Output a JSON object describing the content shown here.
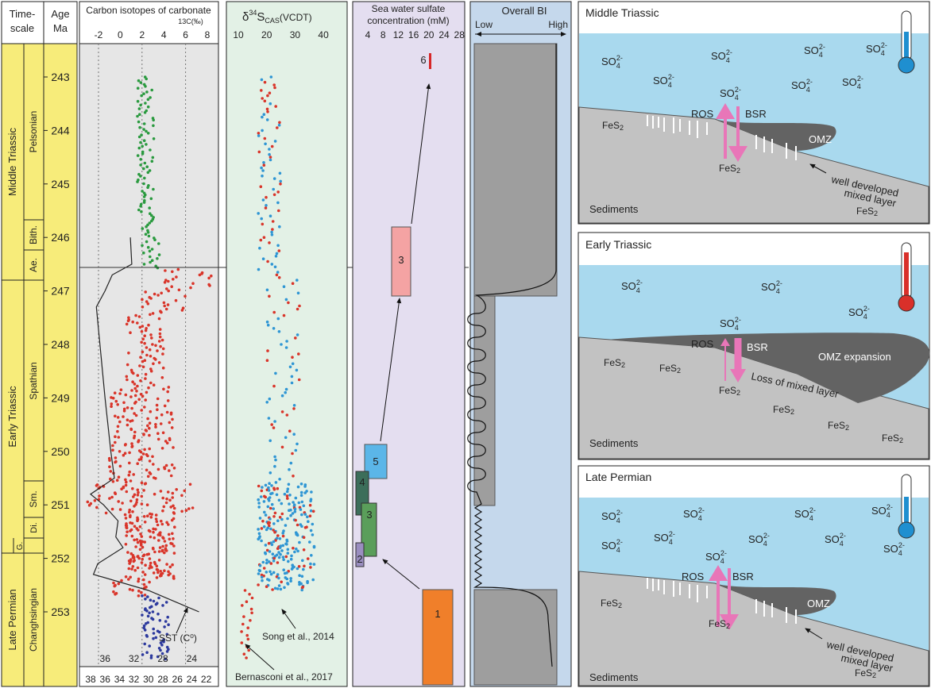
{
  "timescale": {
    "header_line1": "Time-",
    "header_line2": "scale",
    "age_line1": "Age",
    "age_line2": "Ma",
    "periods": [
      "Middle Triassic",
      "Early Triassic",
      "Late Permian"
    ],
    "stages": [
      "Pelsonian",
      "Bith.",
      "Ae.",
      "Spathian",
      "Sm.",
      "Di.",
      "G.",
      "Changhsingian"
    ],
    "ages": [
      "243",
      "244",
      "245",
      "246",
      "247",
      "248",
      "249",
      "250",
      "251",
      "252",
      "253"
    ]
  },
  "carbon_panel": {
    "title": "Carbon isotopes of carbonate",
    "unit": "13C(‰)",
    "top_ticks": [
      "-2",
      "0",
      "2",
      "4",
      "6",
      "8"
    ],
    "sst_ticks_inner": [
      "36",
      "32",
      "28",
      "24"
    ],
    "sst_ticks_bottom": [
      "38",
      "36",
      "34",
      "32",
      "30",
      "28",
      "26",
      "24",
      "22"
    ],
    "sst_label": "SST (C⁰)"
  },
  "sulfur_panel": {
    "title_prefix": "δ",
    "title_sup": "34",
    "title_main": "S",
    "title_sub": "CAS",
    "title_suffix": "(VCDT)",
    "ticks": [
      "10",
      "20",
      "30",
      "40"
    ],
    "ref1": "Song et al., 2014",
    "ref2": "Bernasconi et al., 2017"
  },
  "sulfate_panel": {
    "title_line1": "Sea water sulfate",
    "title_line2": "concentration (mM)",
    "ticks": [
      "4",
      "8",
      "12",
      "16",
      "20",
      "24",
      "28"
    ],
    "boxes": [
      {
        "label": "6",
        "color": "#d62728"
      },
      {
        "label": "3",
        "color": "#f4a3a3"
      },
      {
        "label": "5",
        "color": "#5bb6e8"
      },
      {
        "label": "4",
        "color": "#3c6e5a"
      },
      {
        "label": "3",
        "color": "#5a9e5a"
      },
      {
        "label": "2",
        "color": "#9a8ec0"
      },
      {
        "label": "1",
        "color": "#f07f2a"
      }
    ]
  },
  "bi_panel": {
    "title": "Overall BI",
    "low": "Low",
    "high": "High"
  },
  "scenes": [
    {
      "title": "Middle Triassic",
      "thermometer_color": "#1f8fd0",
      "sulfate_label": "SO",
      "sulfate_sub": "4",
      "sulfate_sup": "2-",
      "ros": "ROS",
      "bsr": "BSR",
      "omz": "OMZ",
      "fes2": "FeS",
      "fes2_sub": "2",
      "note_line1": "well developed",
      "note_line2": "mixed layer",
      "sediments": "Sediments"
    },
    {
      "title": "Early Triassic",
      "thermometer_color": "#d9302a",
      "sulfate_label": "SO",
      "sulfate_sub": "4",
      "sulfate_sup": "2-",
      "ros": "ROS",
      "bsr": "BSR",
      "omz": "OMZ expansion",
      "fes2": "FeS",
      "fes2_sub": "2",
      "note_line1": "Loss of mixed layer",
      "sediments": "Sediments"
    },
    {
      "title": "Late Permian",
      "thermometer_color": "#1f8fd0",
      "sulfate_label": "SO",
      "sulfate_sub": "4",
      "sulfate_sup": "2-",
      "ros": "ROS",
      "bsr": "BSR",
      "omz": "OMZ",
      "fes2": "FeS",
      "fes2_sub": "2",
      "note_line1": "well developed",
      "note_line2": "mixed layer",
      "sediments": "Sediments"
    }
  ],
  "colors": {
    "timescale_fill": "#f7ec7a",
    "carbon_bg": "#e6e6e6",
    "sulfur_bg": "#e3f1e6",
    "sulfate_bg": "#e4def0",
    "bi_bg": "#c5d8ec",
    "water": "#a9d9ee",
    "sediment": "#c2c2c2",
    "omz": "#636363",
    "arrow_pink": "#e876b8",
    "dot_red": "#d9352a",
    "dot_green": "#2a9a3f",
    "dot_blue": "#2f96d4",
    "dot_navy": "#2d3a9e"
  }
}
